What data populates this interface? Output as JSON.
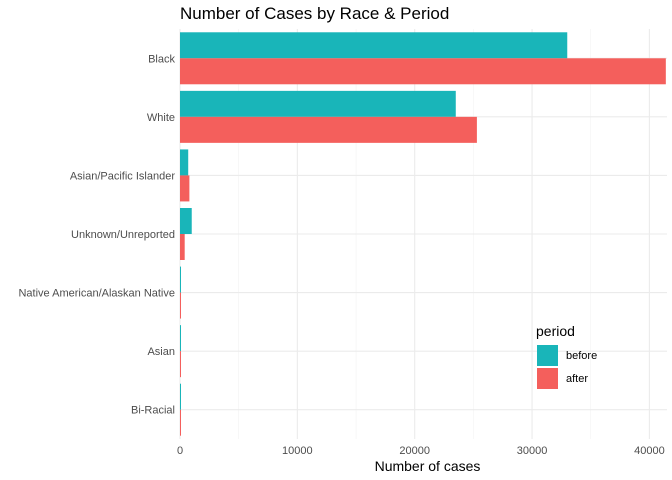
{
  "chart_data": {
    "type": "bar",
    "orientation": "horizontal",
    "title": "Number of Cases by Race & Period",
    "xlabel": "Number of cases",
    "ylabel": "",
    "categories": [
      "Black",
      "White",
      "Asian/Pacific Islander",
      "Unknown/Unreported",
      "Native American/Alaskan Native",
      "Asian",
      "Bi-Racial"
    ],
    "series": [
      {
        "name": "before",
        "color": "#19B5B9",
        "values": [
          33000,
          23500,
          700,
          1000,
          60,
          60,
          40
        ]
      },
      {
        "name": "after",
        "color": "#F45F5C",
        "values": [
          41400,
          25300,
          800,
          400,
          40,
          40,
          30
        ]
      }
    ],
    "xlim": [
      0,
      41500
    ],
    "xticks": [
      0,
      10000,
      20000,
      30000,
      40000
    ],
    "xtick_labels": [
      "0",
      "10000",
      "20000",
      "30000",
      "40000"
    ],
    "grid": true,
    "legend": {
      "title": "period",
      "placement": "bottom-right inside",
      "entries": [
        "before",
        "after"
      ]
    }
  }
}
